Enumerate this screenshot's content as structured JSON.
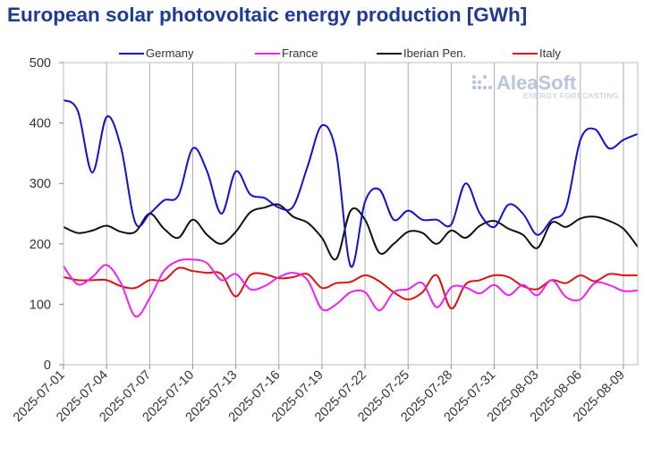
{
  "chart_data": {
    "type": "line",
    "title": "European solar photovoltaic energy production [GWh]",
    "ylim": [
      0,
      500
    ],
    "yticks": [
      0,
      100,
      200,
      300,
      400,
      500
    ],
    "xlim": [
      "2025-07-01",
      "2025-08-10"
    ],
    "xtick_labels": [
      "2025-07-01",
      "2025-07-04",
      "2025-07-07",
      "2025-07-10",
      "2025-07-13",
      "2025-07-16",
      "2025-07-19",
      "2025-07-22",
      "2025-07-25",
      "2025-07-28",
      "2025-07-31",
      "2025-08-03",
      "2025-08-06",
      "2025-08-09"
    ],
    "grid": "vertical",
    "legend_position": "top",
    "x": [
      "2025-07-01",
      "2025-07-02",
      "2025-07-03",
      "2025-07-04",
      "2025-07-05",
      "2025-07-06",
      "2025-07-07",
      "2025-07-08",
      "2025-07-09",
      "2025-07-10",
      "2025-07-11",
      "2025-07-12",
      "2025-07-13",
      "2025-07-14",
      "2025-07-15",
      "2025-07-16",
      "2025-07-17",
      "2025-07-18",
      "2025-07-19",
      "2025-07-20",
      "2025-07-21",
      "2025-07-22",
      "2025-07-23",
      "2025-07-24",
      "2025-07-25",
      "2025-07-26",
      "2025-07-27",
      "2025-07-28",
      "2025-07-29",
      "2025-07-30",
      "2025-07-31",
      "2025-08-01",
      "2025-08-02",
      "2025-08-03",
      "2025-08-04",
      "2025-08-05",
      "2025-08-06",
      "2025-08-07",
      "2025-08-08",
      "2025-08-09",
      "2025-08-10"
    ],
    "series": [
      {
        "name": "Germany",
        "color": "#1111cc",
        "values": [
          438,
          420,
          318,
          410,
          360,
          235,
          250,
          272,
          280,
          358,
          320,
          250,
          320,
          282,
          276,
          260,
          262,
          328,
          396,
          350,
          163,
          270,
          290,
          240,
          255,
          240,
          240,
          232,
          300,
          250,
          228,
          265,
          250,
          215,
          240,
          260,
          372,
          390,
          358,
          372,
          382
        ]
      },
      {
        "name": "France",
        "color": "#ee22ee",
        "values": [
          163,
          133,
          145,
          165,
          135,
          80,
          110,
          155,
          172,
          174,
          168,
          140,
          150,
          125,
          130,
          145,
          152,
          140,
          92,
          100,
          120,
          120,
          90,
          120,
          125,
          135,
          95,
          128,
          128,
          118,
          132,
          115,
          132,
          115,
          140,
          112,
          108,
          135,
          132,
          122,
          123
        ]
      },
      {
        "name": "Iberian Pen.",
        "color": "#111111",
        "values": [
          228,
          218,
          222,
          230,
          220,
          220,
          250,
          225,
          210,
          240,
          215,
          200,
          220,
          252,
          260,
          265,
          245,
          235,
          210,
          175,
          255,
          240,
          185,
          200,
          220,
          218,
          200,
          222,
          210,
          230,
          238,
          225,
          215,
          193,
          235,
          228,
          242,
          245,
          238,
          225,
          195
        ]
      },
      {
        "name": "Italy",
        "color": "#dd1111",
        "values": [
          145,
          140,
          140,
          140,
          130,
          127,
          140,
          140,
          160,
          155,
          152,
          150,
          113,
          148,
          150,
          143,
          145,
          150,
          127,
          135,
          137,
          148,
          138,
          120,
          108,
          120,
          148,
          93,
          133,
          140,
          148,
          145,
          130,
          125,
          140,
          135,
          148,
          138,
          150,
          148,
          148
        ]
      }
    ]
  },
  "logo": {
    "main": "AleaSoft",
    "sub": "ENERGY FORECASTING"
  }
}
